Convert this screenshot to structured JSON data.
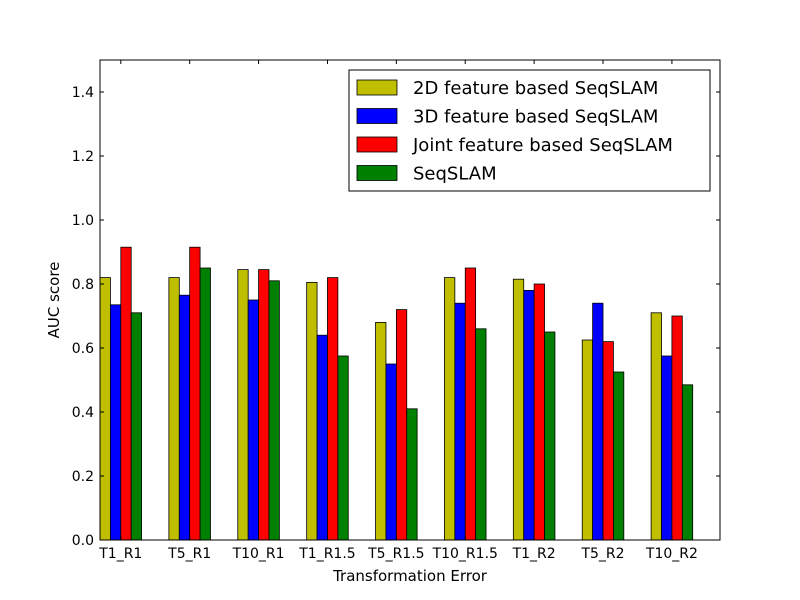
{
  "chart_data": {
    "type": "bar",
    "xlabel": "Transformation Error",
    "ylabel": "AUC score",
    "ylim": [
      0,
      1.5
    ],
    "yticks": [
      "0.0",
      "0.2",
      "0.4",
      "0.6",
      "0.8",
      "1.0",
      "1.2",
      "1.4"
    ],
    "ytick_values": [
      0,
      0.2,
      0.4,
      0.6,
      0.8,
      1.0,
      1.2,
      1.4
    ],
    "categories": [
      "T1_R1",
      "T5_R1",
      "T10_R1",
      "T1_R1.5",
      "T5_R1.5",
      "T10_R1.5",
      "T1_R2",
      "T5_R2",
      "T10_R2"
    ],
    "legend_position": "top-right",
    "grid": false,
    "series": [
      {
        "name": "2D feature based SeqSLAM",
        "color": "#bfbf00",
        "values": [
          0.82,
          0.82,
          0.845,
          0.805,
          0.68,
          0.82,
          0.815,
          0.625,
          0.71
        ]
      },
      {
        "name": "3D feature based SeqSLAM",
        "color": "#0000ff",
        "values": [
          0.735,
          0.765,
          0.75,
          0.64,
          0.55,
          0.74,
          0.78,
          0.74,
          0.575
        ]
      },
      {
        "name": "Joint feature based SeqSLAM",
        "color": "#ff0000",
        "values": [
          0.915,
          0.915,
          0.845,
          0.82,
          0.72,
          0.85,
          0.8,
          0.62,
          0.7
        ]
      },
      {
        "name": "SeqSLAM",
        "color": "#008000",
        "values": [
          0.71,
          0.85,
          0.81,
          0.575,
          0.41,
          0.66,
          0.65,
          0.525,
          0.485
        ]
      }
    ]
  }
}
